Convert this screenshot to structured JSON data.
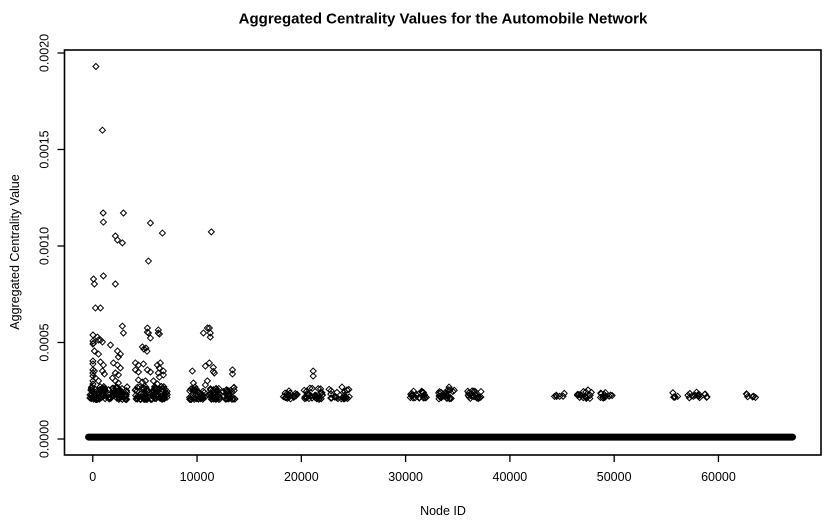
{
  "chart_data": {
    "type": "scatter",
    "title": "Aggregated Centrality Values for the Automobile Network",
    "grid": false,
    "legend": null,
    "marker": "open-diamond",
    "colors": {
      "foreground": "#000000",
      "background": "#ffffff"
    },
    "x_axis": {
      "label": "Node ID",
      "tick_values": [
        0,
        10000,
        20000,
        30000,
        40000,
        50000,
        60000
      ],
      "tick_labels": [
        "0",
        "10000",
        "20000",
        "30000",
        "40000",
        "50000",
        "60000"
      ]
    },
    "y_axis": {
      "label": "Aggregated Centrality Value",
      "tick_values": [
        0,
        0.0005,
        0.001,
        0.0015,
        0.002
      ],
      "tick_labels": [
        "0.0000",
        "0.0005",
        "0.0010",
        "0.0015",
        "0.0020"
      ]
    },
    "xlim": [
      -2710,
      69834
    ],
    "ylim": [
      -8.29e-05,
      0.0020155
    ],
    "baseline": {
      "note": "hundreds of overlapping points forming a solid band near zero",
      "x_start": -400,
      "x_end": 67100,
      "y": 1e-05
    },
    "clusters": [
      {
        "x_start": -300,
        "x_end": 1250,
        "count": 60,
        "y_min": 0.000205,
        "y_max": 0.000272
      },
      {
        "x_start": 1450,
        "x_end": 3300,
        "count": 50,
        "y_min": 0.000205,
        "y_max": 0.000272
      },
      {
        "x_start": 3950,
        "x_end": 5350,
        "count": 38,
        "y_min": 0.000205,
        "y_max": 0.000272
      },
      {
        "x_start": 5500,
        "x_end": 7150,
        "count": 48,
        "y_min": 0.000205,
        "y_max": 0.000272
      },
      {
        "x_start": 9200,
        "x_end": 10750,
        "count": 38,
        "y_min": 0.000205,
        "y_max": 0.00027
      },
      {
        "x_start": 11000,
        "x_end": 12200,
        "count": 34,
        "y_min": 0.000205,
        "y_max": 0.00027
      },
      {
        "x_start": 12450,
        "x_end": 13650,
        "count": 30,
        "y_min": 0.000205,
        "y_max": 0.000268
      },
      {
        "x_start": 18200,
        "x_end": 19650,
        "count": 22,
        "y_min": 0.000208,
        "y_max": 0.000258
      },
      {
        "x_start": 20200,
        "x_end": 22050,
        "count": 30,
        "y_min": 0.000205,
        "y_max": 0.000268
      },
      {
        "x_start": 22600,
        "x_end": 24650,
        "count": 26,
        "y_min": 0.000208,
        "y_max": 0.000258
      },
      {
        "x_start": 30450,
        "x_end": 31350,
        "count": 13,
        "y_min": 0.000212,
        "y_max": 0.000248
      },
      {
        "x_start": 31550,
        "x_end": 32100,
        "count": 10,
        "y_min": 0.000212,
        "y_max": 0.000248
      },
      {
        "x_start": 33050,
        "x_end": 34700,
        "count": 24,
        "y_min": 0.000208,
        "y_max": 0.000258
      },
      {
        "x_start": 35900,
        "x_end": 37400,
        "count": 20,
        "y_min": 0.00021,
        "y_max": 0.000252
      },
      {
        "x_start": 44150,
        "x_end": 45250,
        "count": 6,
        "y_min": 0.000215,
        "y_max": 0.000242
      },
      {
        "x_start": 46450,
        "x_end": 47900,
        "count": 16,
        "y_min": 0.00021,
        "y_max": 0.00025
      },
      {
        "x_start": 48650,
        "x_end": 49850,
        "count": 13,
        "y_min": 0.000212,
        "y_max": 0.000246
      },
      {
        "x_start": 55550,
        "x_end": 56100,
        "count": 5,
        "y_min": 0.000215,
        "y_max": 0.00024
      },
      {
        "x_start": 57000,
        "x_end": 58200,
        "count": 11,
        "y_min": 0.000212,
        "y_max": 0.000244
      },
      {
        "x_start": 58450,
        "x_end": 58950,
        "count": 4,
        "y_min": 0.000215,
        "y_max": 0.00024
      },
      {
        "x_start": 62550,
        "x_end": 62800,
        "count": 3,
        "y_min": 0.000215,
        "y_max": 0.000238
      },
      {
        "x_start": 63200,
        "x_end": 63750,
        "count": 4,
        "y_min": 0.000215,
        "y_max": 0.000238
      }
    ],
    "points": [
      [
        300,
        0.00193
      ],
      [
        930,
        0.0016
      ],
      [
        1000,
        0.001171
      ],
      [
        2940,
        0.001171
      ],
      [
        1020,
        0.001124
      ],
      [
        5530,
        0.001119
      ],
      [
        11370,
        0.001073
      ],
      [
        6680,
        0.001067
      ],
      [
        2170,
        0.001052
      ],
      [
        2370,
        0.001031
      ],
      [
        2840,
        0.001016
      ],
      [
        5340,
        0.000922
      ],
      [
        1020,
        0.000845
      ],
      [
        70,
        0.000829
      ],
      [
        160,
        0.000803
      ],
      [
        2170,
        0.000803
      ],
      [
        260,
        0.000679
      ],
      [
        740,
        0.000679
      ],
      [
        2840,
        0.000585
      ],
      [
        5240,
        0.000575
      ],
      [
        10990,
        0.000575
      ],
      [
        11180,
        0.000575
      ],
      [
        6290,
        0.000565
      ],
      [
        5240,
        0.000554
      ],
      [
        2940,
        0.000549
      ],
      [
        5340,
        0.000549
      ],
      [
        6290,
        0.000549
      ],
      [
        10610,
        0.000549
      ],
      [
        11270,
        0.000549
      ],
      [
        6390,
        0.000544
      ],
      [
        20,
        0.000539
      ],
      [
        450,
        0.000528
      ],
      [
        11270,
        0.000528
      ],
      [
        5530,
        0.000523
      ],
      [
        740,
        0.000513
      ],
      [
        70,
        0.000497
      ],
      [
        30,
        0.000508
      ],
      [
        20,
        0.000492
      ],
      [
        550,
        0.000513
      ],
      [
        930,
        0.000503
      ],
      [
        1700,
        0.000487
      ],
      [
        160,
        0.000456
      ],
      [
        550,
        0.00044
      ],
      [
        10,
        0.000404
      ],
      [
        15,
        0.000389
      ],
      [
        740,
        0.000399
      ],
      [
        1020,
        0.000383
      ],
      [
        10,
        0.000358
      ],
      [
        160,
        0.000352
      ],
      [
        930,
        0.000352
      ],
      [
        12,
        0.000342
      ],
      [
        1120,
        0.000337
      ],
      [
        14,
        0.000326
      ],
      [
        260,
        0.000316
      ],
      [
        550,
        0.000301
      ],
      [
        16,
        0.000301
      ],
      [
        18,
        0.000285
      ],
      [
        2370,
        0.000456
      ],
      [
        2650,
        0.00044
      ],
      [
        2460,
        0.000425
      ],
      [
        1980,
        0.000394
      ],
      [
        2370,
        0.000383
      ],
      [
        2650,
        0.000368
      ],
      [
        2170,
        0.000342
      ],
      [
        2460,
        0.000332
      ],
      [
        1890,
        0.000316
      ],
      [
        2170,
        0.000301
      ],
      [
        2460,
        0.00029
      ],
      [
        4760,
        0.000477
      ],
      [
        4900,
        0.000466
      ],
      [
        5100,
        0.000471
      ],
      [
        5200,
        0.000455
      ],
      [
        4860,
        0.000389
      ],
      [
        4090,
        0.000394
      ],
      [
        4380,
        0.000383
      ],
      [
        6200,
        0.000383
      ],
      [
        6480,
        0.000394
      ],
      [
        6390,
        0.000368
      ],
      [
        4090,
        0.000358
      ],
      [
        4380,
        0.000347
      ],
      [
        5240,
        0.000358
      ],
      [
        5530,
        0.000347
      ],
      [
        6290,
        0.000342
      ],
      [
        6770,
        0.000352
      ],
      [
        6770,
        0.000332
      ],
      [
        6390,
        0.000321
      ],
      [
        4380,
        0.000306
      ],
      [
        5050,
        0.000301
      ],
      [
        4760,
        0.000295
      ],
      [
        5820,
        0.000301
      ],
      [
        6200,
        0.000285
      ],
      [
        9550,
        0.000352
      ],
      [
        10800,
        0.000378
      ],
      [
        11180,
        0.000394
      ],
      [
        11560,
        0.000371
      ],
      [
        11560,
        0.00035
      ],
      [
        11660,
        0.000342
      ],
      [
        10990,
        0.000301
      ],
      [
        10800,
        0.00028
      ],
      [
        9650,
        0.00029
      ],
      [
        13400,
        0.000358
      ],
      [
        13400,
        0.000337
      ],
      [
        21140,
        0.000352
      ],
      [
        21140,
        0.000326
      ],
      [
        23900,
        0.000269
      ],
      [
        34170,
        0.000269
      ],
      [
        47490,
        0.000254
      ]
    ]
  }
}
